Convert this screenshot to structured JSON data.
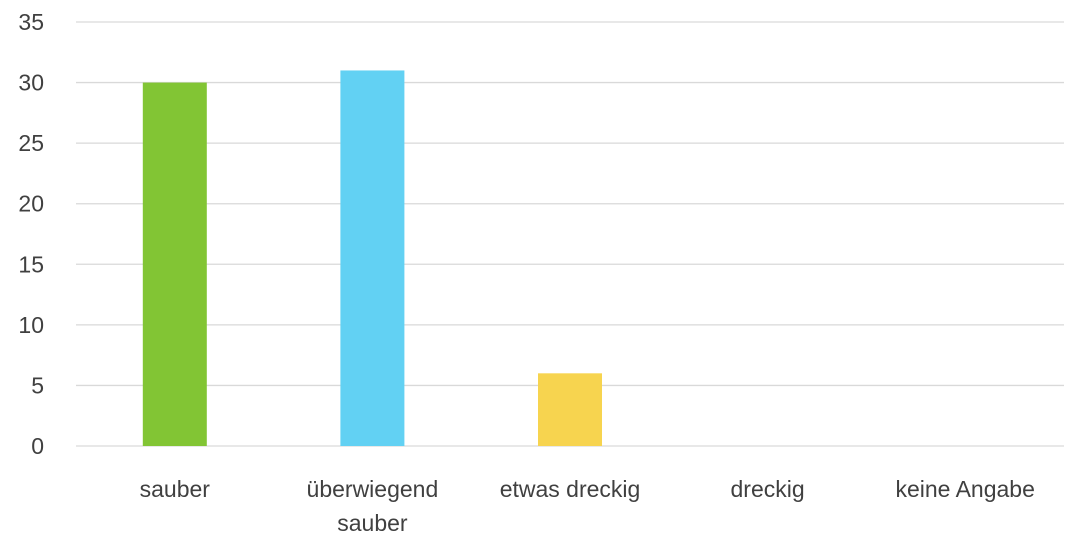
{
  "chart_data": {
    "type": "bar",
    "title": "",
    "xlabel": "",
    "ylabel": "",
    "ylim": [
      0,
      35
    ],
    "yticks": [
      0,
      5,
      10,
      15,
      20,
      25,
      30,
      35
    ],
    "grid": true,
    "categories": [
      [
        "sauber"
      ],
      [
        "überwiegend",
        "sauber"
      ],
      [
        "etwas dreckig"
      ],
      [
        "dreckig"
      ],
      [
        "keine Angabe"
      ]
    ],
    "values": [
      30,
      31,
      6,
      0,
      0
    ],
    "colors": [
      "#82c534",
      "#62d1f3",
      "#f7d44f",
      "#a5a5a5",
      "#4472c4"
    ]
  }
}
